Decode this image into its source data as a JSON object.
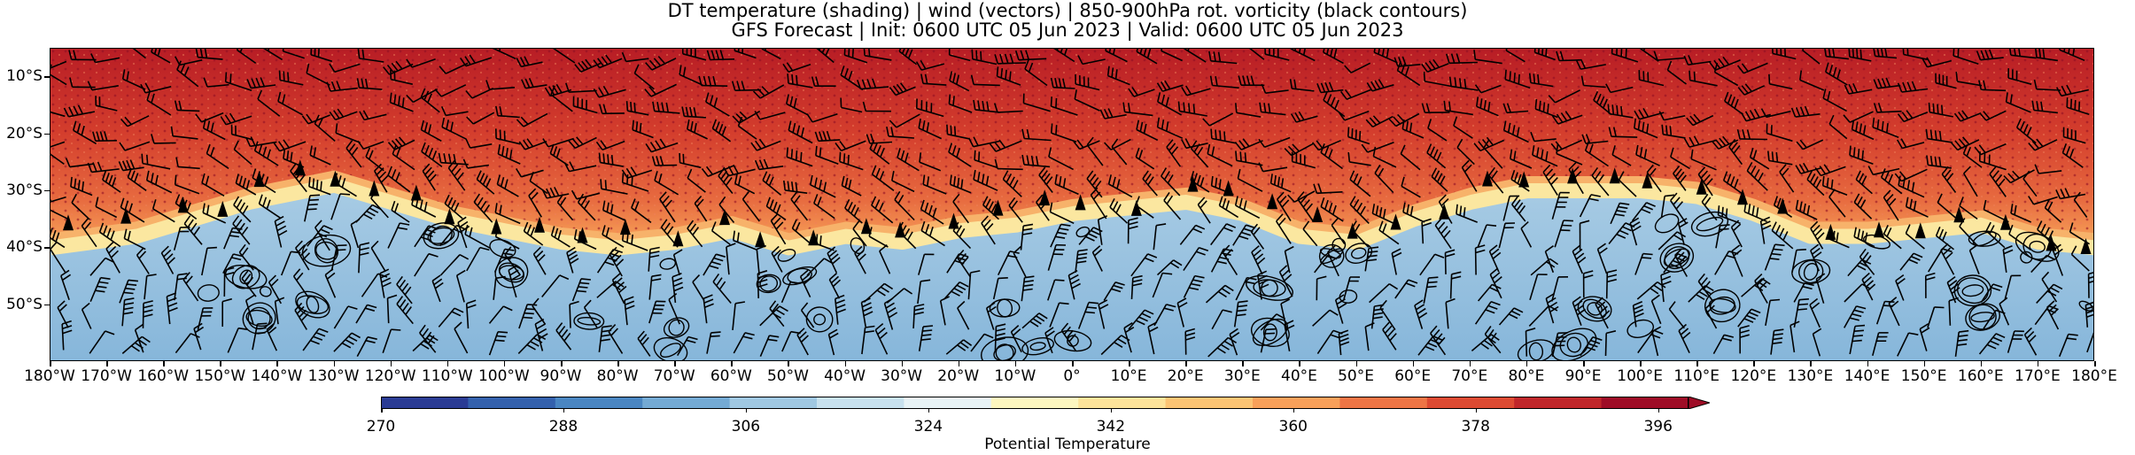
{
  "titles": {
    "line1": "DT temperature (shading) | wind (vectors) | 850-900hPa rot. vorticity (black contours)",
    "line2": "GFS Forecast | Init: 0600 UTC 05 Jun 2023 | Valid: 0600 UTC 05 Jun 2023"
  },
  "map": {
    "lon_range": [
      -180,
      180
    ],
    "lat_range": [
      -60,
      -5
    ],
    "lat_ticks": [
      {
        "value": -10,
        "label": "10°S"
      },
      {
        "value": -20,
        "label": "20°S"
      },
      {
        "value": -30,
        "label": "30°S"
      },
      {
        "value": -40,
        "label": "40°S"
      },
      {
        "value": -50,
        "label": "50°S"
      }
    ],
    "lon_ticks": [
      {
        "value": -180,
        "label": "180°W"
      },
      {
        "value": -170,
        "label": "170°W"
      },
      {
        "value": -160,
        "label": "160°W"
      },
      {
        "value": -150,
        "label": "150°W"
      },
      {
        "value": -140,
        "label": "140°W"
      },
      {
        "value": -130,
        "label": "130°W"
      },
      {
        "value": -120,
        "label": "120°W"
      },
      {
        "value": -110,
        "label": "110°W"
      },
      {
        "value": -100,
        "label": "100°W"
      },
      {
        "value": -90,
        "label": "90°W"
      },
      {
        "value": -80,
        "label": "80°W"
      },
      {
        "value": -70,
        "label": "70°W"
      },
      {
        "value": -60,
        "label": "60°W"
      },
      {
        "value": -50,
        "label": "50°W"
      },
      {
        "value": -40,
        "label": "40°W"
      },
      {
        "value": -30,
        "label": "30°W"
      },
      {
        "value": -20,
        "label": "20°W"
      },
      {
        "value": -10,
        "label": "10°W"
      },
      {
        "value": 0,
        "label": "0°"
      },
      {
        "value": 10,
        "label": "10°E"
      },
      {
        "value": 20,
        "label": "20°E"
      },
      {
        "value": 30,
        "label": "30°E"
      },
      {
        "value": 40,
        "label": "40°E"
      },
      {
        "value": 50,
        "label": "50°E"
      },
      {
        "value": 60,
        "label": "60°E"
      },
      {
        "value": 70,
        "label": "70°E"
      },
      {
        "value": 80,
        "label": "80°E"
      },
      {
        "value": 90,
        "label": "90°E"
      },
      {
        "value": 100,
        "label": "100°E"
      },
      {
        "value": 110,
        "label": "110°E"
      },
      {
        "value": 120,
        "label": "120°E"
      },
      {
        "value": 130,
        "label": "130°E"
      },
      {
        "value": 140,
        "label": "140°E"
      },
      {
        "value": 150,
        "label": "150°E"
      },
      {
        "value": 160,
        "label": "160°E"
      },
      {
        "value": 170,
        "label": "170°E"
      },
      {
        "value": 180,
        "label": "180°E"
      }
    ],
    "dt_boundary_lat_by_lon": [
      [
        -180,
        -38
      ],
      [
        -165,
        -36
      ],
      [
        -155,
        -33
      ],
      [
        -145,
        -30
      ],
      [
        -130,
        -27
      ],
      [
        -120,
        -30
      ],
      [
        -110,
        -33
      ],
      [
        -100,
        -35
      ],
      [
        -90,
        -37
      ],
      [
        -80,
        -38
      ],
      [
        -70,
        -37
      ],
      [
        -60,
        -35
      ],
      [
        -50,
        -38
      ],
      [
        -40,
        -36
      ],
      [
        -30,
        -37
      ],
      [
        -20,
        -35
      ],
      [
        -10,
        -34
      ],
      [
        0,
        -32
      ],
      [
        10,
        -31
      ],
      [
        20,
        -30
      ],
      [
        30,
        -32
      ],
      [
        40,
        -36
      ],
      [
        50,
        -37
      ],
      [
        60,
        -33
      ],
      [
        70,
        -30
      ],
      [
        80,
        -28
      ],
      [
        90,
        -28
      ],
      [
        100,
        -28
      ],
      [
        110,
        -29
      ],
      [
        120,
        -32
      ],
      [
        130,
        -36
      ],
      [
        140,
        -36
      ],
      [
        150,
        -35
      ],
      [
        160,
        -34
      ],
      [
        170,
        -37
      ],
      [
        180,
        -38
      ]
    ]
  },
  "colorbar": {
    "label": "Potential Temperature",
    "min": 270,
    "max": 399,
    "ticks": [
      {
        "value": 270,
        "label": "270"
      },
      {
        "value": 288,
        "label": "288"
      },
      {
        "value": 306,
        "label": "306"
      },
      {
        "value": 324,
        "label": "324"
      },
      {
        "value": 342,
        "label": "342"
      },
      {
        "value": 360,
        "label": "360"
      },
      {
        "value": 378,
        "label": "378"
      },
      {
        "value": 396,
        "label": "396"
      }
    ],
    "colors": [
      "#2a3b94",
      "#3461ad",
      "#4a86c2",
      "#74aad4",
      "#a0c8e2",
      "#c8e1ee",
      "#e8f3f6",
      "#fdf7c0",
      "#fde39a",
      "#fcc474",
      "#f8a05a",
      "#ee7545",
      "#dd4a32",
      "#c0262a",
      "#9e0c26"
    ],
    "extend": "max"
  }
}
